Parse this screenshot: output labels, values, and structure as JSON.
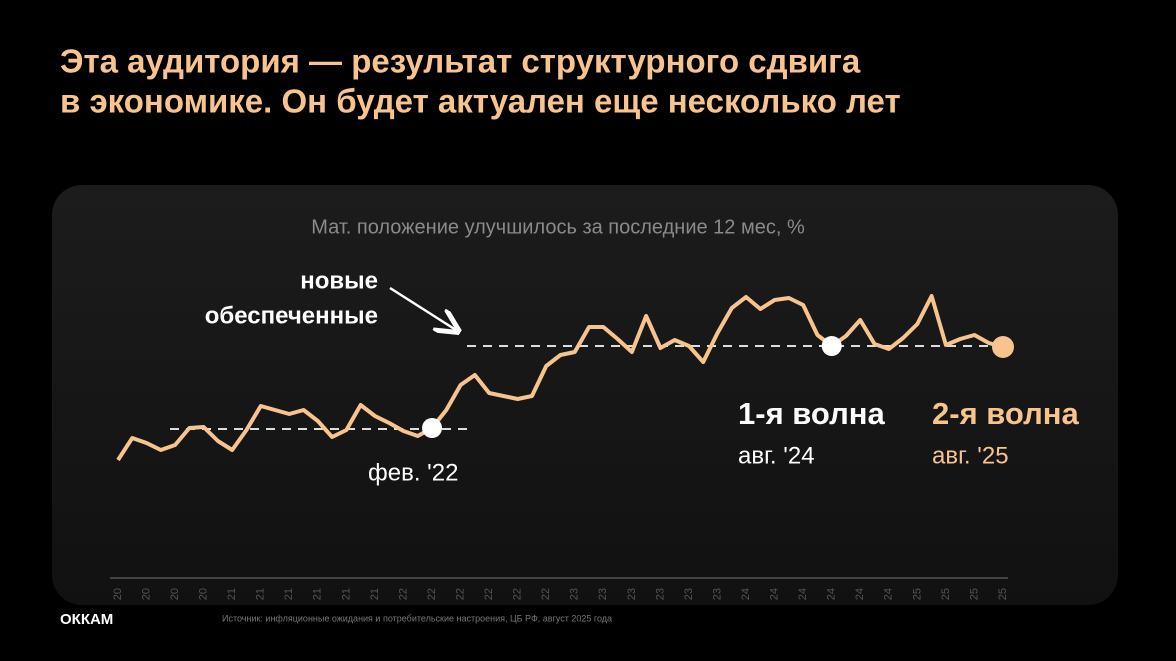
{
  "title": [
    "Эта аудитория — результат структурного сдвига",
    "в экономике. Он будет актуален еще несколько лет"
  ],
  "chart_data": {
    "type": "line",
    "title": "Мат. положение улучшилось за последние 12 мес, %",
    "color": "#f7c48d",
    "categories": [
      "20",
      null,
      "20",
      null,
      "20",
      null,
      "20",
      null,
      "21",
      null,
      "21",
      null,
      "21",
      null,
      "21",
      null,
      "21",
      null,
      "21",
      null,
      "22",
      null,
      "22",
      null,
      "22",
      null,
      "22",
      null,
      "22",
      null,
      "22",
      null,
      "23",
      null,
      "23",
      null,
      "23",
      null,
      "23",
      null,
      "23",
      null,
      "23",
      null,
      "24",
      null,
      "24",
      null,
      "24",
      null,
      "24",
      null,
      "24",
      null,
      "24",
      null,
      "25",
      null,
      "25",
      null,
      "25",
      null,
      "25"
    ],
    "values": [
      11.8,
      14.0,
      13.5,
      12.8,
      13.3,
      15.0,
      15.1,
      13.7,
      12.8,
      14.8,
      17.2,
      16.8,
      16.4,
      16.8,
      15.7,
      14.1,
      14.8,
      17.3,
      16.2,
      15.5,
      14.7,
      14.2,
      15.0,
      16.8,
      19.3,
      20.3,
      18.5,
      18.2,
      17.9,
      18.2,
      21.2,
      22.3,
      22.6,
      25.1,
      25.1,
      23.9,
      22.6,
      26.2,
      23.0,
      23.8,
      23.2,
      21.6,
      24.5,
      27.0,
      28.1,
      26.9,
      27.8,
      28.0,
      27.3,
      24.3,
      23.2,
      24.2,
      25.8,
      23.4,
      22.9,
      24.0,
      25.4,
      28.2,
      23.3,
      23.9,
      24.3,
      23.5,
      23.1
    ],
    "ylim": [
      0,
      36
    ],
    "reference_lines": [
      14.9,
      23.2
    ],
    "annotations": [
      {
        "point": 22,
        "label": "фев. '22"
      },
      {
        "point": 50,
        "title": "1-я волна",
        "label": "авг. '24"
      },
      {
        "point": 62,
        "title": "2-я волна",
        "label": "авг. '25"
      }
    ],
    "callout": [
      "новые",
      "обеспеченные"
    ]
  },
  "footer": {
    "logo": "ОККАМ",
    "source": "Источник: инфляционные ожидания и потребительские настроения, ЦБ РФ, август 2025 года"
  }
}
